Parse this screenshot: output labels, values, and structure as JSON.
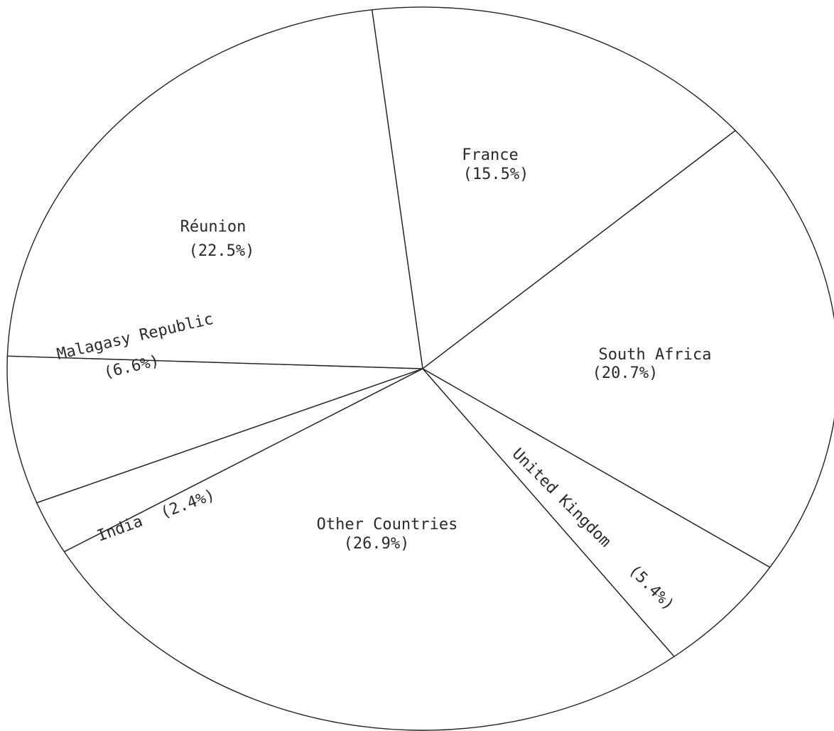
{
  "chart_data": {
    "type": "pie",
    "title": "",
    "start": "France",
    "direction": "clockwise",
    "slices": [
      {
        "name": "France",
        "value": 15.5,
        "pct_label": "(15.5%)"
      },
      {
        "name": "South Africa",
        "value": 20.7,
        "pct_label": "(20.7%)"
      },
      {
        "name": "United Kingdom",
        "value": 5.4,
        "pct_label": "(5.4%)"
      },
      {
        "name": "Other Countries",
        "value": 26.9,
        "pct_label": "(26.9%)"
      },
      {
        "name": "India",
        "value": 2.4,
        "pct_label": "(2.4%)"
      },
      {
        "name": "Malagasy Republic",
        "value": 6.6,
        "pct_label": "(6.6%)"
      },
      {
        "name": "Réunion",
        "value": 22.5,
        "pct_label": "(22.5%)"
      }
    ],
    "colors": {
      "stroke": "#222222",
      "fill": "#ffffff",
      "text": "#2a2a2a"
    }
  }
}
